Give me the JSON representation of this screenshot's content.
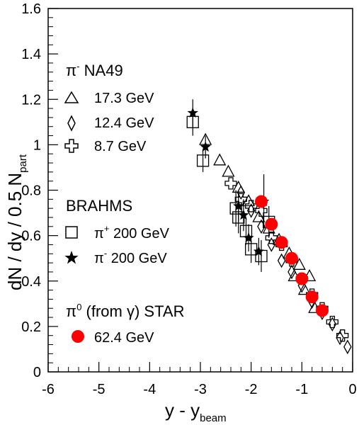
{
  "chart_data": {
    "type": "scatter",
    "xlabel": "y - y",
    "xlabel_sub": "beam",
    "ylabel": "dN / dy / 0.5 N",
    "ylabel_sub": "part",
    "xlim": [
      -6,
      0
    ],
    "ylim": [
      0,
      1.6
    ],
    "xticks": [
      "-6",
      "-5",
      "-4",
      "-3",
      "-2",
      "-1",
      "0"
    ],
    "yticks": [
      "0",
      "0.2",
      "0.4",
      "0.6",
      "0.8",
      "1",
      "1.2",
      "1.4",
      "1.6"
    ],
    "grid": false,
    "legend": {
      "group_na49": {
        "pi": "π",
        "sup": "-",
        "rest": " NA49"
      },
      "group_brahms": "BRAHMS",
      "group_star": {
        "pi": "π",
        "sup": "0",
        "rest": " (from γ)  STAR"
      },
      "entries": {
        "na49_173": "17.3 GeV",
        "na49_124": "12.4 GeV",
        "na49_87": "8.7 GeV",
        "brahms_pip": {
          "pi": "π",
          "sup": "+",
          "rest": " 200 GeV"
        },
        "brahms_pim": {
          "pi": "π",
          "sup": "-",
          "rest": " 200 GeV"
        },
        "star_624": "62.4 GeV"
      }
    },
    "series": [
      {
        "name": "17.3 GeV",
        "marker": "triangle",
        "color": "#000000",
        "points": [
          {
            "x": -2.9,
            "y": 1.02
          },
          {
            "x": -2.62,
            "y": 0.93
          },
          {
            "x": -2.45,
            "y": 0.88
          },
          {
            "x": -2.25,
            "y": 0.81
          },
          {
            "x": -2.05,
            "y": 0.75
          },
          {
            "x": -1.85,
            "y": 0.68
          },
          {
            "x": -1.65,
            "y": 0.63
          },
          {
            "x": -1.45,
            "y": 0.58
          },
          {
            "x": -1.25,
            "y": 0.52
          },
          {
            "x": -1.05,
            "y": 0.47
          },
          {
            "x": -0.85,
            "y": 0.42
          },
          {
            "x": -1.15,
            "y": 0.42
          },
          {
            "x": -0.95,
            "y": 0.36
          },
          {
            "x": -0.75,
            "y": 0.28
          }
        ]
      },
      {
        "name": "12.4 GeV",
        "marker": "diamond",
        "color": "#000000",
        "points": [
          {
            "x": -2.2,
            "y": 0.79
          },
          {
            "x": -2.0,
            "y": 0.71
          },
          {
            "x": -1.8,
            "y": 0.64
          },
          {
            "x": -1.6,
            "y": 0.56
          },
          {
            "x": -1.4,
            "y": 0.49
          },
          {
            "x": -1.2,
            "y": 0.44
          },
          {
            "x": -1.0,
            "y": 0.38
          },
          {
            "x": -0.8,
            "y": 0.31
          },
          {
            "x": -0.6,
            "y": 0.26
          },
          {
            "x": -0.4,
            "y": 0.21
          },
          {
            "x": -0.25,
            "y": 0.15
          },
          {
            "x": -0.1,
            "y": 0.11
          }
        ]
      },
      {
        "name": "8.7 GeV",
        "marker": "cross",
        "color": "#000000",
        "points": [
          {
            "x": -2.4,
            "y": 0.83
          },
          {
            "x": -2.2,
            "y": 0.76
          },
          {
            "x": -2.0,
            "y": 0.73
          },
          {
            "x": -1.8,
            "y": 0.71
          },
          {
            "x": -1.6,
            "y": 0.59
          },
          {
            "x": -1.4,
            "y": 0.56
          },
          {
            "x": -1.2,
            "y": 0.49
          },
          {
            "x": -1.0,
            "y": 0.41
          },
          {
            "x": -0.8,
            "y": 0.34
          },
          {
            "x": -0.6,
            "y": 0.28
          },
          {
            "x": -0.4,
            "y": 0.22
          },
          {
            "x": -0.2,
            "y": 0.16
          }
        ]
      },
      {
        "name": "π+ 200 GeV",
        "marker": "square",
        "color": "#000000",
        "points": [
          {
            "x": -3.15,
            "y": 1.1,
            "err": 0.06
          },
          {
            "x": -2.95,
            "y": 0.93,
            "err": 0.05
          },
          {
            "x": -2.3,
            "y": 0.72,
            "err": 0.08
          },
          {
            "x": -2.25,
            "y": 0.68,
            "err": 0.07
          },
          {
            "x": -2.1,
            "y": 0.62,
            "err": 0.06
          },
          {
            "x": -2.0,
            "y": 0.54,
            "err": 0.06
          },
          {
            "x": -1.8,
            "y": 0.51,
            "err": 0.07
          },
          {
            "x": -1.65,
            "y": 0.66,
            "err": 0.07
          }
        ]
      },
      {
        "name": "π- 200 GeV",
        "marker": "star",
        "color": "#000000",
        "points": [
          {
            "x": -3.15,
            "y": 1.14,
            "err": 0.06
          },
          {
            "x": -2.9,
            "y": 0.99,
            "err": 0.05
          },
          {
            "x": -2.25,
            "y": 0.73,
            "err": 0.07
          },
          {
            "x": -2.15,
            "y": 0.69,
            "err": 0.07
          },
          {
            "x": -2.05,
            "y": 0.59,
            "err": 0.06
          },
          {
            "x": -1.85,
            "y": 0.53,
            "err": 0.06
          },
          {
            "x": -1.75,
            "y": 0.75,
            "err": 0.12
          }
        ]
      },
      {
        "name": "62.4 GeV",
        "marker": "circle",
        "color": "#ff0000",
        "points": [
          {
            "x": -1.8,
            "y": 0.75
          },
          {
            "x": -1.6,
            "y": 0.65
          },
          {
            "x": -1.4,
            "y": 0.57
          },
          {
            "x": -1.2,
            "y": 0.5
          },
          {
            "x": -1.0,
            "y": 0.41
          },
          {
            "x": -0.8,
            "y": 0.33
          },
          {
            "x": -0.6,
            "y": 0.27
          }
        ]
      }
    ]
  }
}
